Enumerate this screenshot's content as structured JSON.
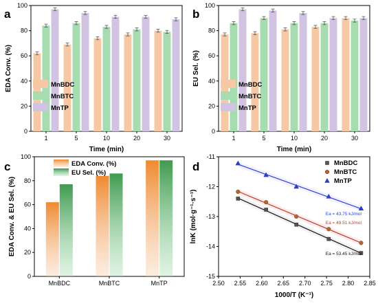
{
  "figure": {
    "panels": [
      {
        "letter": "a"
      },
      {
        "letter": "b"
      },
      {
        "letter": "c"
      },
      {
        "letter": "d"
      }
    ]
  },
  "colors": {
    "MnBDC": "#f6c9a4",
    "MnBTC": "#a6dcaf",
    "MnTP": "#d2c3e2",
    "MnBDC_dark": "#ef8a2f",
    "MnBTC_dark": "#3f9a4f",
    "MnTP_dark": "#9a86c0",
    "fit_a": "#1a1a1a",
    "fit_b": "#c0392b",
    "fit_c": "#2b3fd6"
  },
  "chart_data": [
    {
      "panel": "a",
      "type": "bar",
      "categories": [
        "1",
        "5",
        "10",
        "20",
        "30"
      ],
      "series": [
        {
          "name": "MnBDC",
          "values": [
            62,
            69,
            74,
            77,
            80
          ]
        },
        {
          "name": "MnBTC",
          "values": [
            84,
            86,
            83,
            81,
            79
          ]
        },
        {
          "name": "MnTP",
          "values": [
            97,
            94,
            91,
            91,
            89
          ]
        }
      ],
      "xlabel": "Time (min)",
      "ylabel": "EDA Conv. (%)",
      "ylim": [
        0,
        100
      ],
      "yticks": [
        0,
        20,
        40,
        60,
        80,
        100
      ],
      "legend": "bottom-left"
    },
    {
      "panel": "b",
      "type": "bar",
      "categories": [
        "1",
        "5",
        "10",
        "20",
        "30"
      ],
      "series": [
        {
          "name": "MnBDC",
          "values": [
            77,
            78,
            81,
            83,
            90
          ]
        },
        {
          "name": "MnBTC",
          "values": [
            86,
            90,
            86,
            86,
            88
          ]
        },
        {
          "name": "MnTP",
          "values": [
            97,
            96,
            94,
            90,
            90
          ]
        }
      ],
      "xlabel": "Time (min)",
      "ylabel": "EU Sel. (%)",
      "ylim": [
        0,
        100
      ],
      "yticks": [
        0,
        20,
        40,
        60,
        80,
        100
      ],
      "legend": "bottom-left"
    },
    {
      "panel": "c",
      "type": "bar",
      "categories": [
        "MnBDC",
        "MnBTC",
        "MnTP"
      ],
      "series": [
        {
          "name": "EDA Conv. (%)",
          "values": [
            62,
            84,
            97
          ]
        },
        {
          "name": "EU Sel. (%)",
          "values": [
            77,
            86,
            97
          ]
        }
      ],
      "xlabel": "",
      "ylabel": "EDA Conv. & EU Sel. (%)",
      "ylim": [
        0,
        100
      ],
      "yticks": [
        0,
        20,
        40,
        60,
        80,
        100
      ],
      "legend": "top-left"
    },
    {
      "panel": "d",
      "type": "scatter",
      "xlabel": "1000/T (K⁻¹)",
      "ylabel": "lnK (mol·g⁻¹·s⁻¹)",
      "xlim": [
        2.5,
        2.85
      ],
      "ylim": [
        -15,
        -11
      ],
      "xticks": [
        2.5,
        2.55,
        2.6,
        2.65,
        2.7,
        2.75,
        2.8,
        2.85
      ],
      "xtick_labels": [
        "2.50",
        "2.55",
        "2.60",
        "2.65",
        "2.70",
        "2.75",
        "2.80",
        "2.85"
      ],
      "yticks": [
        -15,
        -14,
        -13,
        -12,
        -11
      ],
      "legend": "top-right",
      "series": [
        {
          "name": "MnBDC",
          "marker": "square",
          "x": [
            2.545,
            2.61,
            2.68,
            2.755,
            2.83
          ],
          "y": [
            -12.4,
            -12.77,
            -13.27,
            -13.75,
            -14.22
          ],
          "annotation": "Ea = 53.45 kJ/mol"
        },
        {
          "name": "MnBTC",
          "marker": "circle",
          "x": [
            2.545,
            2.61,
            2.68,
            2.755,
            2.83
          ],
          "y": [
            -12.17,
            -12.52,
            -13.0,
            -13.42,
            -13.88
          ],
          "annotation": "Ea = 49.51 kJ/mol"
        },
        {
          "name": "MnTP",
          "marker": "triangle",
          "x": [
            2.545,
            2.61,
            2.68,
            2.755,
            2.83
          ],
          "y": [
            -11.22,
            -11.61,
            -12.0,
            -12.33,
            -12.73
          ],
          "annotation": "Ea = 43.75 kJ/mol"
        }
      ]
    }
  ]
}
